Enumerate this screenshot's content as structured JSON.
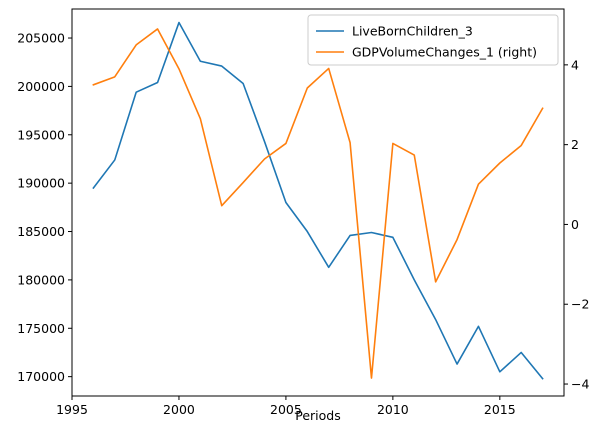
{
  "chart_data": {
    "type": "line",
    "xlabel": "Periods",
    "x": [
      1996,
      1997,
      1998,
      1999,
      2000,
      2001,
      2002,
      2003,
      2004,
      2005,
      2006,
      2007,
      2008,
      2009,
      2010,
      2011,
      2012,
      2013,
      2014,
      2015,
      2016,
      2017
    ],
    "xlim": [
      1995,
      2018
    ],
    "x_ticks": [
      "1995",
      "2000",
      "2005",
      "2010",
      "2015"
    ],
    "x_tick_values": [
      1995,
      2000,
      2005,
      2010,
      2015
    ],
    "y_left": {
      "lim": [
        168000,
        208000
      ],
      "ticks": [
        "170000",
        "175000",
        "180000",
        "185000",
        "190000",
        "195000",
        "200000",
        "205000"
      ],
      "tick_values": [
        170000,
        175000,
        180000,
        185000,
        190000,
        195000,
        200000,
        205000
      ]
    },
    "y_right": {
      "lim": [
        -4.3,
        5.4
      ],
      "ticks": [
        "−4",
        "−2",
        "0",
        "2",
        "4"
      ],
      "tick_values": [
        -4,
        -2,
        0,
        2,
        4
      ]
    },
    "series": [
      {
        "name": "LiveBornChildren_3",
        "axis": "left",
        "color": "#1f77b4",
        "values": [
          189500,
          192400,
          199400,
          200400,
          206600,
          202600,
          202100,
          200300,
          194300,
          188000,
          185000,
          181300,
          184600,
          184900,
          184400,
          180000,
          175900,
          171300,
          175200,
          170500,
          172500,
          169800
        ]
      },
      {
        "name": "GDPVolumeChanges_1 (right)",
        "axis": "right",
        "color": "#ff7f0e",
        "values": [
          3.5,
          3.7,
          4.5,
          4.9,
          3.9,
          2.65,
          0.47,
          1.05,
          1.64,
          2.03,
          3.42,
          3.91,
          2.05,
          -3.85,
          2.03,
          1.74,
          -1.44,
          -0.38,
          1.01,
          1.54,
          1.98,
          2.91
        ]
      }
    ],
    "legend": "top-right",
    "grid": false
  }
}
